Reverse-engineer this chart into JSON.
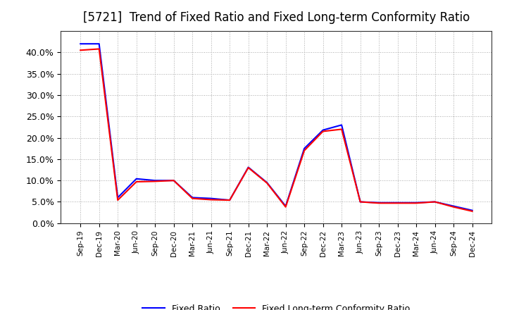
{
  "title": "[5721]  Trend of Fixed Ratio and Fixed Long-term Conformity Ratio",
  "x_labels": [
    "Sep-19",
    "Dec-19",
    "Mar-20",
    "Jun-20",
    "Sep-20",
    "Dec-20",
    "Mar-21",
    "Jun-21",
    "Sep-21",
    "Dec-21",
    "Mar-22",
    "Jun-22",
    "Sep-22",
    "Dec-22",
    "Mar-23",
    "Jun-23",
    "Sep-23",
    "Dec-23",
    "Mar-24",
    "Jun-24",
    "Sep-24",
    "Dec-24"
  ],
  "fixed_ratio": [
    0.42,
    0.42,
    0.06,
    0.104,
    0.1,
    0.1,
    0.06,
    0.058,
    0.054,
    0.131,
    0.095,
    0.04,
    0.175,
    0.218,
    0.23,
    0.05,
    0.048,
    0.048,
    0.048,
    0.05,
    0.04,
    0.03
  ],
  "fixed_lt_ratio": [
    0.405,
    0.408,
    0.054,
    0.097,
    0.098,
    0.1,
    0.058,
    0.055,
    0.054,
    0.13,
    0.094,
    0.038,
    0.17,
    0.215,
    0.22,
    0.05,
    0.047,
    0.047,
    0.047,
    0.05,
    0.038,
    0.028
  ],
  "fixed_ratio_color": "#0000ff",
  "fixed_lt_ratio_color": "#ff0000",
  "ylim": [
    0,
    0.45
  ],
  "yticks": [
    0.0,
    0.05,
    0.1,
    0.15,
    0.2,
    0.25,
    0.3,
    0.35,
    0.4
  ],
  "background_color": "#ffffff",
  "grid_color": "#aaaaaa",
  "title_fontsize": 12,
  "legend_fixed_ratio": "Fixed Ratio",
  "legend_fixed_lt_ratio": "Fixed Long-term Conformity Ratio"
}
